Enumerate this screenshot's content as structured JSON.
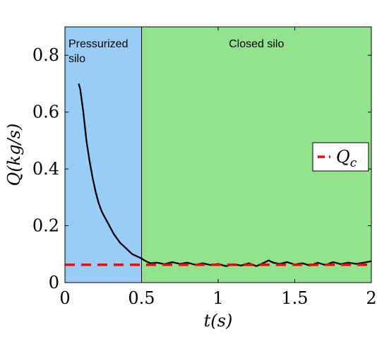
{
  "chart_data": {
    "type": "line",
    "xlabel": "t(s)",
    "ylabel": "Q(kg/s)",
    "xlim": [
      0,
      2
    ],
    "ylim": [
      0,
      0.9
    ],
    "x_ticks": [
      {
        "value": 0,
        "label": "0"
      },
      {
        "value": 0.5,
        "label": "0.5"
      },
      {
        "value": 1,
        "label": "1"
      },
      {
        "value": 1.5,
        "label": "1.5"
      },
      {
        "value": 2,
        "label": "2"
      }
    ],
    "y_ticks": [
      {
        "value": 0,
        "label": "0"
      },
      {
        "value": 0.2,
        "label": "0.2"
      },
      {
        "value": 0.4,
        "label": "0.4"
      },
      {
        "value": 0.6,
        "label": "0.6"
      },
      {
        "value": 0.8,
        "label": "0.8"
      }
    ],
    "grid": false,
    "regions": [
      {
        "label_lines": [
          "Pressurized",
          "silo"
        ],
        "x_start": 0,
        "x_end": 0.5,
        "color": "#99ccf7"
      },
      {
        "label_lines": [
          "Closed silo"
        ],
        "x_start": 0.5,
        "x_end": 2,
        "color": "#93e28e"
      }
    ],
    "series": [
      {
        "color": "#000000",
        "style": "solid",
        "x": [
          0.09,
          0.1,
          0.12,
          0.14,
          0.16,
          0.18,
          0.2,
          0.22,
          0.24,
          0.26,
          0.28,
          0.3,
          0.32,
          0.34,
          0.36,
          0.38,
          0.4,
          0.42,
          0.44,
          0.46,
          0.48,
          0.5,
          0.52,
          0.54,
          0.56,
          0.6,
          0.65,
          0.7,
          0.75,
          0.8,
          0.85,
          0.9,
          0.95,
          1.0,
          1.05,
          1.1,
          1.15,
          1.2,
          1.25,
          1.3,
          1.33,
          1.36,
          1.4,
          1.45,
          1.5,
          1.55,
          1.6,
          1.65,
          1.7,
          1.75,
          1.8,
          1.85,
          1.9,
          1.95,
          2.0
        ],
        "y": [
          0.7,
          0.68,
          0.6,
          0.5,
          0.43,
          0.37,
          0.32,
          0.28,
          0.25,
          0.23,
          0.21,
          0.19,
          0.17,
          0.155,
          0.14,
          0.13,
          0.12,
          0.11,
          0.1,
          0.095,
          0.09,
          0.085,
          0.078,
          0.072,
          0.068,
          0.07,
          0.065,
          0.072,
          0.066,
          0.07,
          0.063,
          0.068,
          0.062,
          0.066,
          0.058,
          0.065,
          0.06,
          0.068,
          0.058,
          0.07,
          0.078,
          0.07,
          0.066,
          0.072,
          0.064,
          0.068,
          0.06,
          0.07,
          0.062,
          0.072,
          0.065,
          0.07,
          0.066,
          0.07,
          0.075
        ]
      },
      {
        "name": "Q_c",
        "color": "#ff0000",
        "style": "dashed",
        "x": [
          0,
          2
        ],
        "y": [
          0.063,
          0.063
        ]
      }
    ],
    "legend": {
      "position": "right",
      "entries": [
        {
          "label": "Q",
          "subscript": "c",
          "color": "#ff0000",
          "style": "dashed"
        }
      ]
    }
  }
}
